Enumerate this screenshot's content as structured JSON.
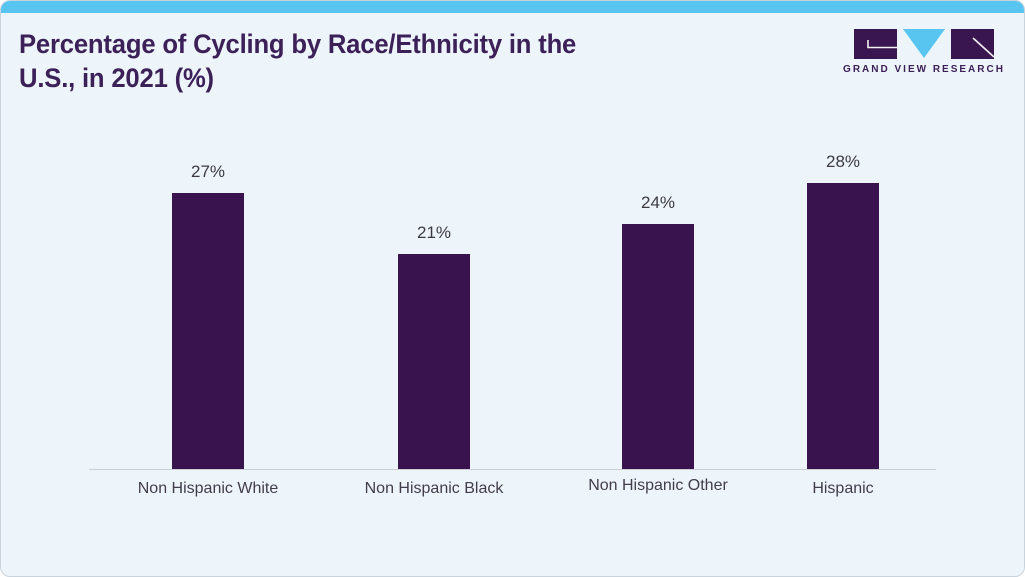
{
  "title": {
    "line1": "Percentage of Cycling by Race/Ethnicity in the",
    "line2": "U.S., in 2021 (%)"
  },
  "brand": {
    "name": "GRAND VIEW RESEARCH",
    "logo_icons": [
      "logo-g-block",
      "logo-v-triangle",
      "logo-r-block"
    ]
  },
  "colors": {
    "accent_bar": "#58c4f0",
    "bar_fill": "#38134e",
    "title_text": "#3c2159",
    "background": "#eef5fa",
    "value_label": "#3a3a3f",
    "category_label": "#413d4a",
    "axis_line": "#cbced3",
    "logo_purple": "#3a1650",
    "logo_blue": "#58c4f0"
  },
  "chart_data": {
    "type": "bar",
    "title": "Percentage of Cycling by Race/Ethnicity in the U.S., in 2021 (%)",
    "categories": [
      "Non Hispanic White",
      "Non Hispanic Black",
      "Non Hispanic Other",
      "Hispanic"
    ],
    "values": [
      27,
      21,
      24,
      28
    ],
    "value_labels": [
      "27%",
      "21%",
      "24%",
      "28%"
    ],
    "xlabel": "",
    "ylabel": "",
    "ylim": [
      0,
      30
    ],
    "grid": false,
    "legend": false,
    "bar_color": "#38134e"
  }
}
